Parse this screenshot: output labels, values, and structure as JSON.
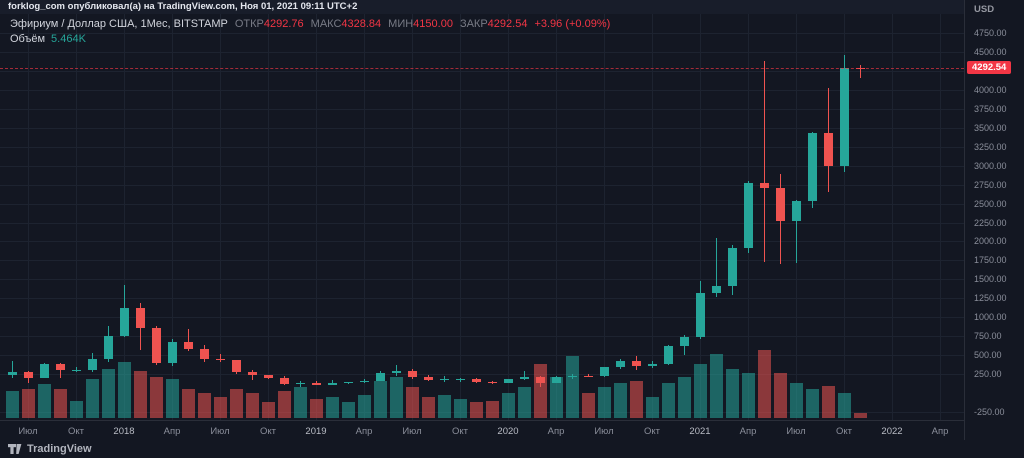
{
  "top_bar": {
    "text": "forklog_com опубликовал(а) на TradingView.com, Ноя 01, 2021 09:11 UTC+2"
  },
  "legend": {
    "symbol": "Эфириум / Доллар США, 1Мес, BITSTAMP",
    "ohlc": {
      "open_label": "ОТКР",
      "open": "4292.76",
      "high_label": "МАКС",
      "high": "4328.84",
      "low_label": "МИН",
      "low": "4150.00",
      "close_label": "ЗАКР",
      "close": "4292.54"
    },
    "change": "+3.96 (+0.09%)",
    "volume_label": "Объём",
    "volume_value": "5.464K"
  },
  "price_axis": {
    "currency": "USD",
    "labels": [
      "4750.00",
      "4500.00",
      "4250.00",
      "4000.00",
      "3750.00",
      "3500.00",
      "3250.00",
      "3000.00",
      "2750.00",
      "2500.00",
      "2250.00",
      "2000.00",
      "1750.00",
      "1500.00",
      "1250.00",
      "1000.00",
      "750.00",
      "500.00",
      "250.00",
      "-250.00"
    ],
    "last_price": "4292.54"
  },
  "time_axis": {
    "labels": [
      "Июл",
      "Окт",
      "2018",
      "Апр",
      "Июл",
      "Окт",
      "2019",
      "Апр",
      "Июл",
      "Окт",
      "2020",
      "Апр",
      "Июл",
      "Окт",
      "2021",
      "Апр",
      "Июл",
      "Окт",
      "2022",
      "Апр"
    ]
  },
  "footer": {
    "brand": "TradingView"
  },
  "colors": {
    "up": "#26a69a",
    "down": "#ef5350",
    "badge": "#f23645",
    "background": "#131722",
    "grid": "#1d2330",
    "text_muted": "#8a8e9a"
  },
  "chart_data": {
    "type": "candlestick+volume",
    "title": "Эфириум / Доллар США, 1Мес, BITSTAMP",
    "symbol": "ETH/USD",
    "exchange": "BITSTAMP",
    "interval": "1Мес",
    "ylabel": "USD",
    "ylim": [
      -250,
      4750
    ],
    "last_price": 4292.54,
    "columns": [
      "month",
      "open",
      "high",
      "low",
      "close",
      "volume_k"
    ],
    "candles": [
      [
        "2017-06",
        232,
        420,
        201,
        283,
        28
      ],
      [
        "2017-07",
        283,
        293,
        133,
        203,
        30
      ],
      [
        "2017-08",
        203,
        390,
        195,
        383,
        35
      ],
      [
        "2017-09",
        383,
        395,
        199,
        303,
        30
      ],
      [
        "2017-10",
        303,
        345,
        277,
        305,
        18
      ],
      [
        "2017-11",
        305,
        522,
        280,
        447,
        40
      ],
      [
        "2017-12",
        447,
        881,
        410,
        756,
        50
      ],
      [
        "2018-01",
        756,
        1432,
        742,
        1118,
        58
      ],
      [
        "2018-02",
        1118,
        1190,
        565,
        856,
        48
      ],
      [
        "2018-03",
        856,
        880,
        368,
        394,
        42
      ],
      [
        "2018-04",
        394,
        715,
        362,
        669,
        40
      ],
      [
        "2018-05",
        669,
        850,
        552,
        577,
        30
      ],
      [
        "2018-06",
        577,
        632,
        404,
        454,
        26
      ],
      [
        "2018-07",
        454,
        520,
        403,
        433,
        22
      ],
      [
        "2018-08",
        433,
        437,
        247,
        283,
        30
      ],
      [
        "2018-09",
        283,
        308,
        167,
        233,
        26
      ],
      [
        "2018-10",
        233,
        235,
        184,
        197,
        16
      ],
      [
        "2018-11",
        197,
        222,
        102,
        113,
        28
      ],
      [
        "2018-12",
        113,
        157,
        81,
        133,
        32
      ],
      [
        "2019-01",
        133,
        161,
        103,
        107,
        20
      ],
      [
        "2019-02",
        107,
        166,
        102,
        137,
        22
      ],
      [
        "2019-03",
        137,
        147,
        125,
        141,
        16
      ],
      [
        "2019-04",
        141,
        184,
        136,
        162,
        24
      ],
      [
        "2019-05",
        162,
        288,
        156,
        268,
        38
      ],
      [
        "2019-06",
        268,
        365,
        226,
        290,
        42
      ],
      [
        "2019-07",
        290,
        319,
        190,
        218,
        32
      ],
      [
        "2019-08",
        218,
        236,
        163,
        172,
        22
      ],
      [
        "2019-09",
        172,
        224,
        152,
        180,
        24
      ],
      [
        "2019-10",
        180,
        199,
        151,
        182,
        20
      ],
      [
        "2019-11",
        182,
        192,
        139,
        152,
        16
      ],
      [
        "2019-12",
        152,
        158,
        116,
        129,
        17
      ],
      [
        "2020-01",
        129,
        188,
        126,
        180,
        26
      ],
      [
        "2020-02",
        180,
        288,
        175,
        217,
        32
      ],
      [
        "2020-03",
        217,
        228,
        86,
        133,
        56
      ],
      [
        "2020-04",
        133,
        227,
        131,
        206,
        42
      ],
      [
        "2020-05",
        206,
        253,
        179,
        231,
        64
      ],
      [
        "2020-06",
        231,
        253,
        216,
        225,
        26
      ],
      [
        "2020-07",
        225,
        348,
        216,
        346,
        32
      ],
      [
        "2020-08",
        346,
        446,
        313,
        428,
        36
      ],
      [
        "2020-09",
        428,
        490,
        308,
        359,
        38
      ],
      [
        "2020-10",
        359,
        420,
        325,
        386,
        22
      ],
      [
        "2020-11",
        386,
        635,
        370,
        615,
        36
      ],
      [
        "2020-12",
        615,
        760,
        505,
        737,
        42
      ],
      [
        "2021-01",
        737,
        1477,
        716,
        1314,
        56
      ],
      [
        "2021-02",
        1314,
        2042,
        1271,
        1418,
        66
      ],
      [
        "2021-03",
        1418,
        1947,
        1293,
        1919,
        50
      ],
      [
        "2021-04",
        1919,
        2798,
        1844,
        2773,
        46
      ],
      [
        "2021-05",
        2773,
        4375,
        1728,
        2707,
        70
      ],
      [
        "2021-06",
        2707,
        2891,
        1700,
        2275,
        46
      ],
      [
        "2021-07",
        2275,
        2550,
        1718,
        2530,
        36
      ],
      [
        "2021-08",
        2530,
        3441,
        2440,
        3430,
        30
      ],
      [
        "2021-09",
        3430,
        4028,
        2652,
        3001,
        33
      ],
      [
        "2021-10",
        3001,
        4460,
        2917,
        4290,
        26
      ],
      [
        "2021-11",
        4292.76,
        4328.84,
        4150,
        4292.54,
        5.464
      ]
    ]
  }
}
